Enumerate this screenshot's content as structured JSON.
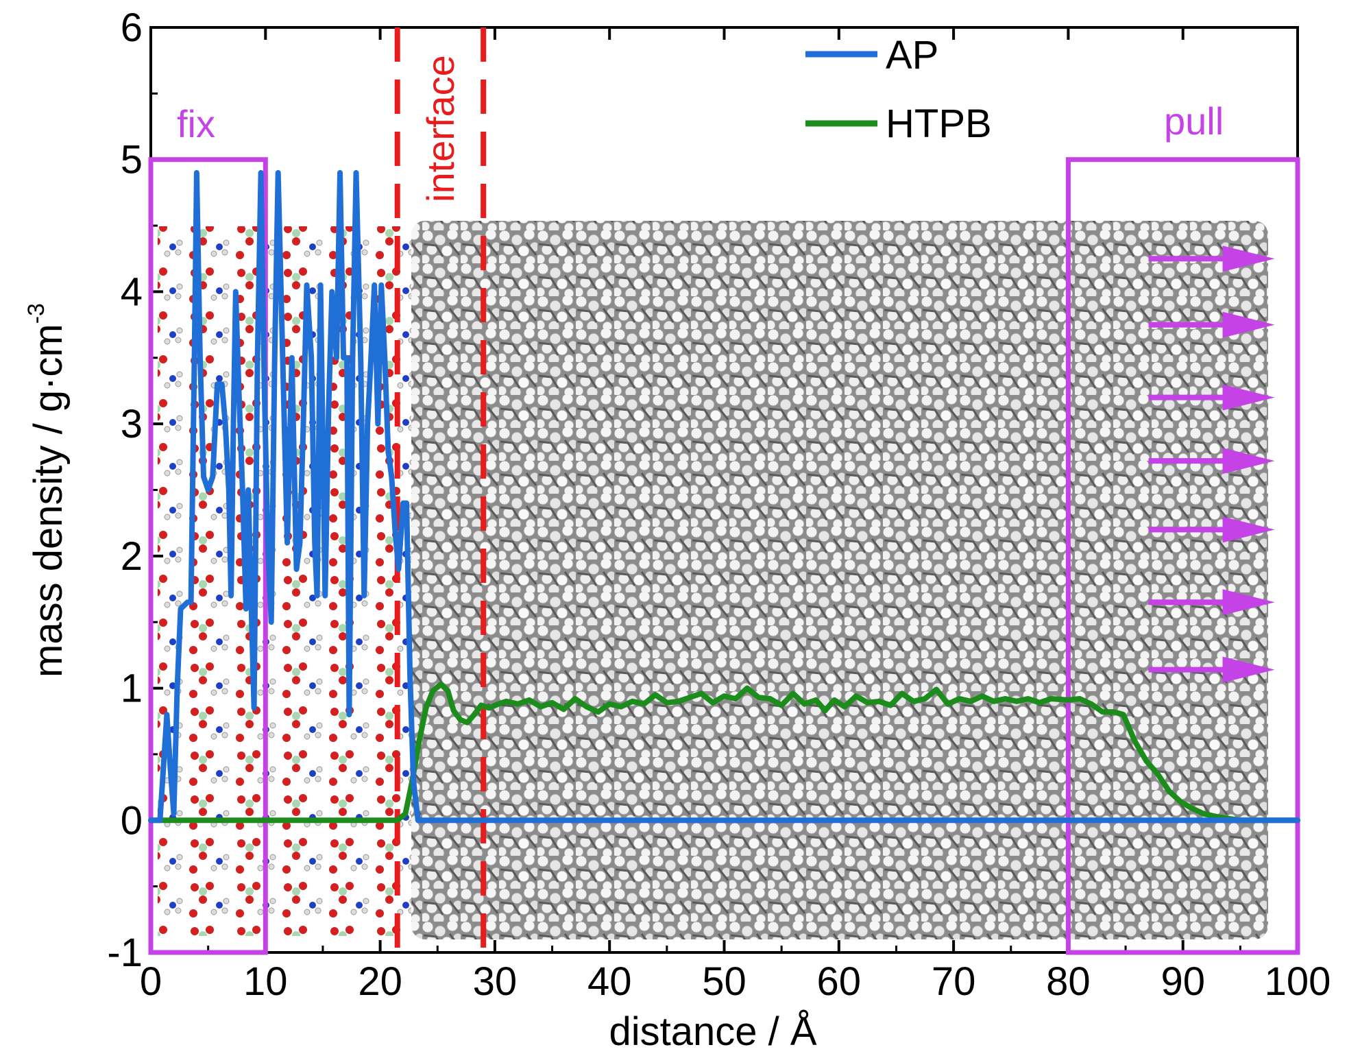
{
  "chart_data": {
    "type": "line",
    "title": "",
    "xlabel": "distance / Å",
    "ylabel": "mass density / g·cm",
    "ylabel_superscript": "-3",
    "xlim": [
      0,
      100
    ],
    "ylim": [
      -1,
      6
    ],
    "xticks": [
      0,
      10,
      20,
      30,
      40,
      50,
      60,
      70,
      80,
      90,
      100
    ],
    "yticks": [
      -1,
      0,
      1,
      2,
      3,
      4,
      5,
      6
    ],
    "xtick_labels": [
      "0",
      "10",
      "20",
      "30",
      "40",
      "50",
      "60",
      "70",
      "80",
      "90",
      "100"
    ],
    "ytick_labels": [
      "-1",
      "0",
      "1",
      "2",
      "3",
      "4",
      "5",
      "6"
    ],
    "grid": false,
    "legend_position": "top-center",
    "series": [
      {
        "name": "AP",
        "color": "#1f6fd6",
        "points": [
          [
            0,
            0
          ],
          [
            0.8,
            0
          ],
          [
            1.1,
            0.4
          ],
          [
            1.4,
            0.8
          ],
          [
            1.7,
            0.4
          ],
          [
            2.0,
            0.05
          ],
          [
            2.3,
            1.0
          ],
          [
            2.6,
            1.6
          ],
          [
            3.2,
            1.65
          ],
          [
            3.5,
            1.65
          ],
          [
            3.8,
            3.5
          ],
          [
            4.0,
            4.9
          ],
          [
            4.3,
            3.5
          ],
          [
            4.6,
            2.6
          ],
          [
            5.0,
            2.5
          ],
          [
            5.4,
            2.6
          ],
          [
            5.8,
            3.3
          ],
          [
            6.2,
            3.3
          ],
          [
            6.5,
            3.0
          ],
          [
            6.8,
            2.5
          ],
          [
            7.0,
            1.7
          ],
          [
            7.2,
            3.0
          ],
          [
            7.4,
            4.0
          ],
          [
            7.7,
            3.2
          ],
          [
            8.0,
            2.5
          ],
          [
            8.3,
            1.6
          ],
          [
            8.5,
            2.5
          ],
          [
            8.8,
            1.5
          ],
          [
            9.0,
            0.85
          ],
          [
            9.3,
            3.5
          ],
          [
            9.6,
            4.9
          ],
          [
            9.9,
            3.3
          ],
          [
            10.2,
            2.1
          ],
          [
            10.5,
            1.5
          ],
          [
            10.8,
            3.5
          ],
          [
            11.1,
            4.9
          ],
          [
            11.5,
            3.5
          ],
          [
            11.9,
            2.1
          ],
          [
            12.3,
            3.5
          ],
          [
            12.7,
            1.9
          ],
          [
            13.0,
            2.1
          ],
          [
            13.3,
            3.0
          ],
          [
            13.6,
            4.05
          ],
          [
            14.0,
            3.5
          ],
          [
            14.3,
            2.1
          ],
          [
            14.5,
            1.7
          ],
          [
            14.8,
            4.05
          ],
          [
            15.2,
            1.7
          ],
          [
            15.5,
            3.1
          ],
          [
            15.8,
            4.0
          ],
          [
            16.2,
            3.5
          ],
          [
            16.5,
            4.9
          ],
          [
            16.8,
            3.5
          ],
          [
            17.1,
            3.5
          ],
          [
            17.3,
            0.8
          ],
          [
            17.6,
            3.5
          ],
          [
            17.9,
            4.9
          ],
          [
            18.3,
            3.5
          ],
          [
            18.6,
            1.7
          ],
          [
            18.9,
            3.0
          ],
          [
            19.2,
            3.5
          ],
          [
            19.5,
            4.05
          ],
          [
            19.8,
            3.0
          ],
          [
            20.1,
            4.05
          ],
          [
            20.4,
            3.5
          ],
          [
            20.7,
            2.8
          ],
          [
            21.0,
            2.6
          ],
          [
            21.3,
            2.2
          ],
          [
            21.6,
            1.9
          ],
          [
            22.0,
            2.4
          ],
          [
            22.3,
            2.4
          ],
          [
            22.6,
            1.1
          ],
          [
            22.9,
            0.3
          ],
          [
            23.3,
            0
          ],
          [
            30,
            0
          ],
          [
            40,
            0
          ],
          [
            50,
            0
          ],
          [
            60,
            0
          ],
          [
            70,
            0
          ],
          [
            80,
            0
          ],
          [
            90,
            0
          ],
          [
            100,
            0
          ]
        ]
      },
      {
        "name": "HTPB",
        "color": "#1c8c1c",
        "points": [
          [
            0,
            0
          ],
          [
            5,
            0
          ],
          [
            10,
            0
          ],
          [
            15,
            0
          ],
          [
            20,
            0
          ],
          [
            21.5,
            0
          ],
          [
            22.2,
            0.05
          ],
          [
            22.8,
            0.3
          ],
          [
            23.4,
            0.6
          ],
          [
            24.0,
            0.85
          ],
          [
            24.6,
            0.98
          ],
          [
            25.3,
            1.03
          ],
          [
            25.9,
            0.98
          ],
          [
            26.4,
            0.83
          ],
          [
            27.0,
            0.76
          ],
          [
            27.6,
            0.74
          ],
          [
            28.2,
            0.8
          ],
          [
            28.8,
            0.87
          ],
          [
            29.5,
            0.85
          ],
          [
            30.3,
            0.88
          ],
          [
            31.0,
            0.9
          ],
          [
            32.0,
            0.88
          ],
          [
            33.0,
            0.91
          ],
          [
            34.0,
            0.86
          ],
          [
            35.0,
            0.89
          ],
          [
            36.0,
            0.84
          ],
          [
            37.0,
            0.92
          ],
          [
            38.0,
            0.86
          ],
          [
            39.0,
            0.82
          ],
          [
            40.0,
            0.88
          ],
          [
            41.0,
            0.86
          ],
          [
            42.0,
            0.9
          ],
          [
            43.0,
            0.88
          ],
          [
            44.0,
            0.95
          ],
          [
            45.0,
            0.89
          ],
          [
            46.0,
            0.9
          ],
          [
            47.0,
            0.93
          ],
          [
            48.0,
            0.96
          ],
          [
            49.0,
            0.89
          ],
          [
            50.0,
            0.94
          ],
          [
            51.0,
            0.92
          ],
          [
            52.0,
            1.0
          ],
          [
            53.0,
            0.93
          ],
          [
            54.0,
            0.92
          ],
          [
            55.0,
            0.87
          ],
          [
            56.0,
            0.96
          ],
          [
            57.0,
            0.88
          ],
          [
            58.0,
            0.91
          ],
          [
            58.8,
            0.83
          ],
          [
            59.6,
            0.91
          ],
          [
            60.5,
            0.86
          ],
          [
            61.5,
            0.94
          ],
          [
            62.5,
            0.89
          ],
          [
            63.5,
            0.9
          ],
          [
            64.5,
            0.87
          ],
          [
            65.5,
            0.96
          ],
          [
            66.5,
            0.9
          ],
          [
            67.5,
            0.92
          ],
          [
            68.5,
            0.99
          ],
          [
            69.5,
            0.88
          ],
          [
            70.5,
            0.92
          ],
          [
            71.5,
            0.9
          ],
          [
            72.5,
            0.94
          ],
          [
            73.5,
            0.9
          ],
          [
            74.5,
            0.92
          ],
          [
            75.5,
            0.9
          ],
          [
            76.5,
            0.92
          ],
          [
            77.5,
            0.89
          ],
          [
            78.5,
            0.92
          ],
          [
            80.0,
            0.91
          ],
          [
            81.0,
            0.92
          ],
          [
            82.0,
            0.88
          ],
          [
            83.0,
            0.82
          ],
          [
            84.0,
            0.82
          ],
          [
            84.8,
            0.8
          ],
          [
            85.8,
            0.6
          ],
          [
            86.8,
            0.45
          ],
          [
            87.8,
            0.35
          ],
          [
            88.8,
            0.22
          ],
          [
            89.8,
            0.14
          ],
          [
            90.8,
            0.09
          ],
          [
            91.8,
            0.05
          ],
          [
            92.8,
            0.03
          ],
          [
            93.8,
            0.015
          ],
          [
            95.0,
            0
          ],
          [
            100,
            0
          ]
        ]
      }
    ],
    "annotations": {
      "fix": {
        "label": "fix",
        "x_range": [
          0,
          10
        ],
        "y_range": [
          -1,
          5
        ],
        "color": "#c543e6"
      },
      "pull": {
        "label": "pull",
        "x_range": [
          80,
          100
        ],
        "y_range": [
          -1,
          5
        ],
        "color": "#c543e6"
      },
      "interface": {
        "label": "interface",
        "x_lines": [
          21.5,
          29
        ],
        "color": "#e81c1c"
      },
      "pull_arrows_y": [
        4.25,
        3.75,
        3.2,
        2.72,
        2.2,
        1.65,
        1.14
      ],
      "pull_arrows_x_range": [
        87,
        98
      ]
    }
  }
}
